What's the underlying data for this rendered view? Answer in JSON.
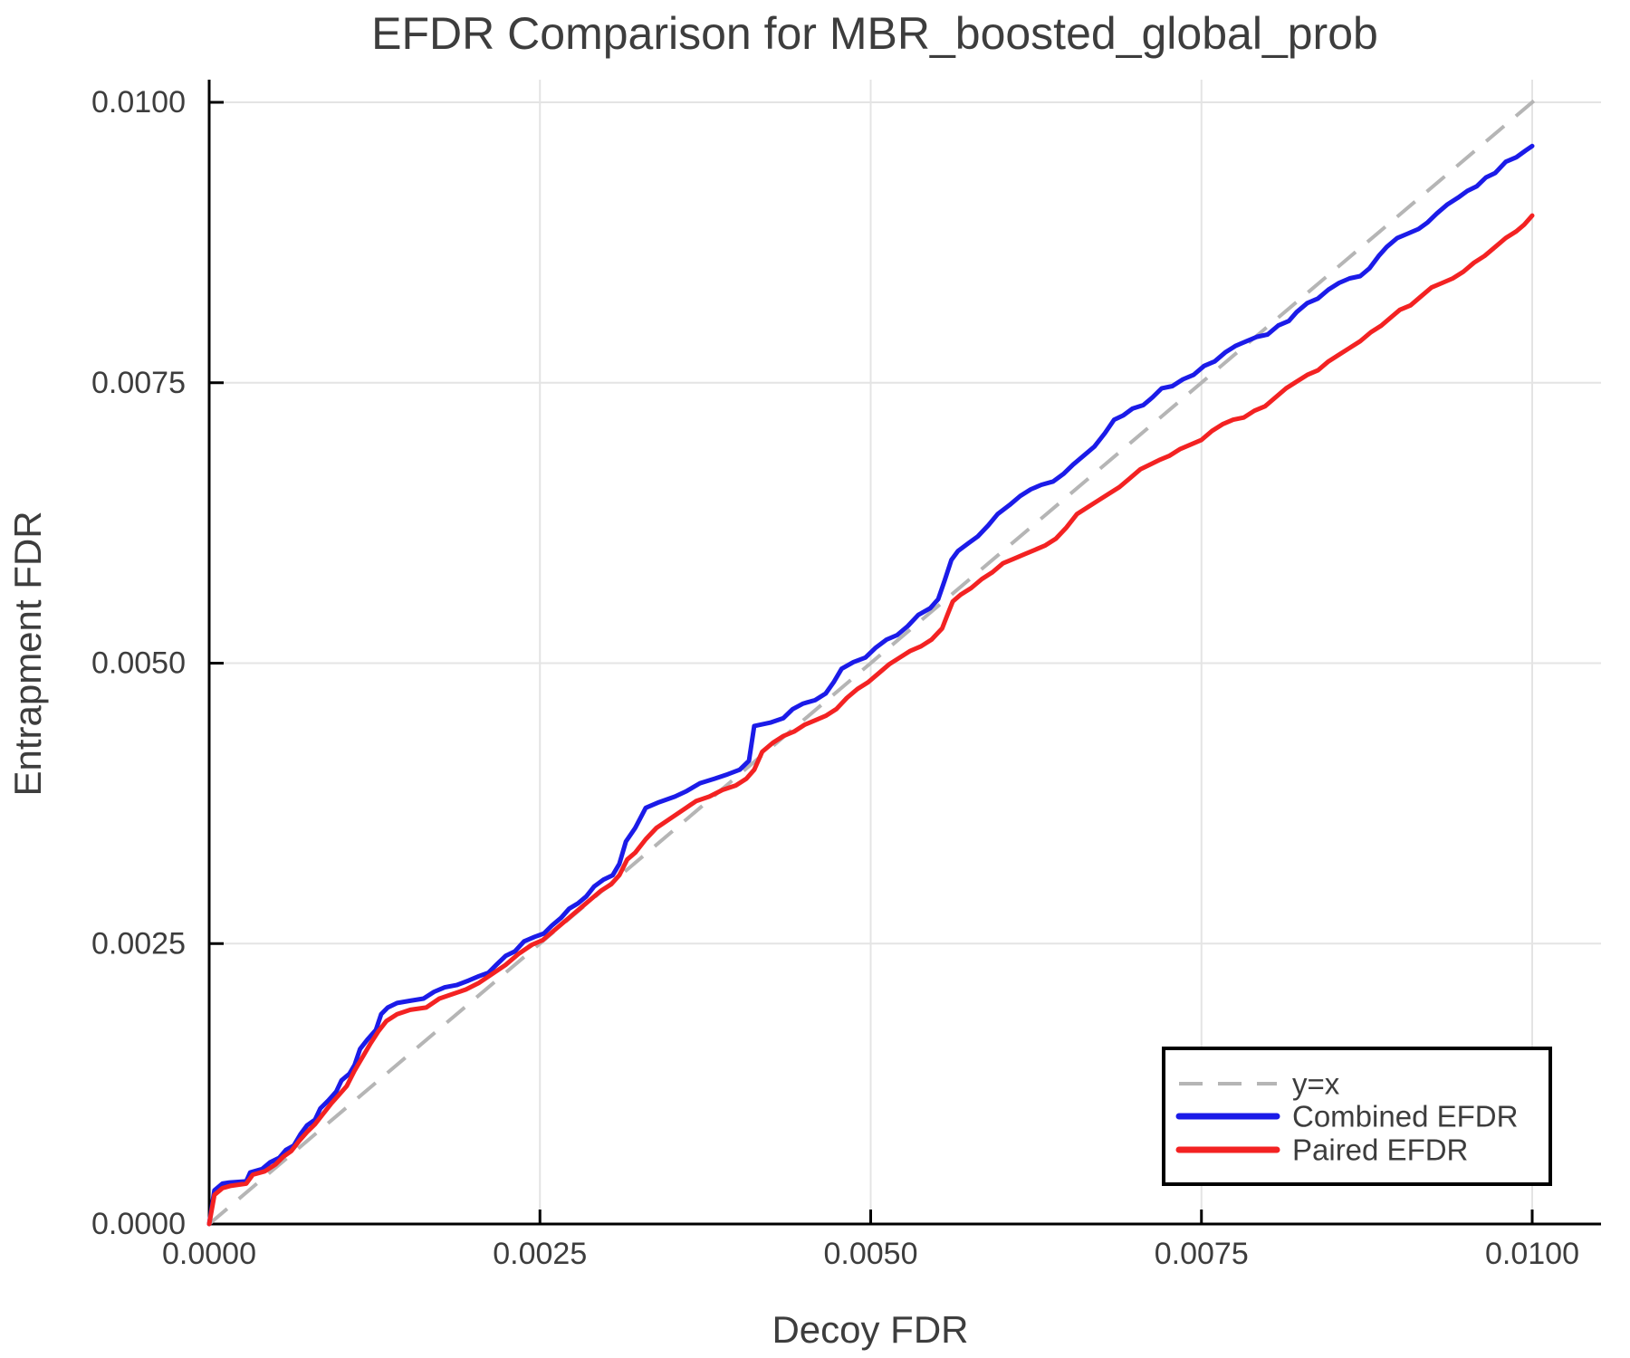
{
  "chart_data": {
    "type": "line",
    "title": "EFDR Comparison for MBR_boosted_global_prob",
    "xlabel": "Decoy FDR",
    "ylabel": "Entrapment FDR",
    "xlim": [
      0.0,
      0.0105
    ],
    "ylim": [
      0.0,
      0.0102
    ],
    "grid": true,
    "x_ticks": {
      "values": [
        0.0,
        0.0025,
        0.005,
        0.0075,
        0.01
      ],
      "labels": [
        "0.0000",
        "0.0025",
        "0.0050",
        "0.0075",
        "0.0100"
      ]
    },
    "y_ticks": {
      "values": [
        0.0,
        0.0025,
        0.005,
        0.0075,
        0.01
      ],
      "labels": [
        "0.0000",
        "0.0025",
        "0.0050",
        "0.0075",
        "0.0100"
      ]
    },
    "colors": {
      "text": "#3d3d3d",
      "axis": "#000000",
      "grid": "#e4e4e4",
      "background": "#ffffff"
    },
    "legend": {
      "position": "bottom-right",
      "entries": [
        "y=x",
        "Combined EFDR",
        "Paired EFDR"
      ]
    },
    "series": [
      {
        "name": "y=x",
        "color": "#b5b5b5",
        "style": "dashed",
        "width": 4,
        "points": [
          [
            0.0,
            0.0
          ],
          [
            0.0101,
            0.0101
          ]
        ]
      },
      {
        "name": "Combined EFDR",
        "color": "#1b1be8",
        "style": "solid",
        "width": 5,
        "points": [
          [
            0.0,
            0.0
          ],
          [
            4e-05,
            0.0003
          ],
          [
            0.0001,
            0.00036
          ],
          [
            0.00015,
            0.00037
          ],
          [
            0.00028,
            0.00038
          ],
          [
            0.00031,
            0.00046
          ],
          [
            0.0004,
            0.00049
          ],
          [
            0.00046,
            0.00055
          ],
          [
            0.00053,
            0.00059
          ],
          [
            0.00058,
            0.00066
          ],
          [
            0.00064,
            0.0007
          ],
          [
            0.00069,
            0.0008
          ],
          [
            0.00074,
            0.00088
          ],
          [
            0.0008,
            0.00093
          ],
          [
            0.00084,
            0.00103
          ],
          [
            0.0009,
            0.0011
          ],
          [
            0.00096,
            0.00118
          ],
          [
            0.001,
            0.00128
          ],
          [
            0.00106,
            0.00134
          ],
          [
            0.0011,
            0.00142
          ],
          [
            0.00114,
            0.00156
          ],
          [
            0.0012,
            0.00165
          ],
          [
            0.00126,
            0.00173
          ],
          [
            0.0013,
            0.00187
          ],
          [
            0.00135,
            0.00193
          ],
          [
            0.00142,
            0.00197
          ],
          [
            0.00152,
            0.00199
          ],
          [
            0.00162,
            0.00201
          ],
          [
            0.0017,
            0.00207
          ],
          [
            0.00178,
            0.00211
          ],
          [
            0.00187,
            0.00213
          ],
          [
            0.00196,
            0.00217
          ],
          [
            0.00204,
            0.00221
          ],
          [
            0.00211,
            0.00224
          ],
          [
            0.00217,
            0.00231
          ],
          [
            0.00224,
            0.00239
          ],
          [
            0.00231,
            0.00243
          ],
          [
            0.00238,
            0.00252
          ],
          [
            0.00246,
            0.00256
          ],
          [
            0.00253,
            0.00259
          ],
          [
            0.00259,
            0.00266
          ],
          [
            0.00266,
            0.00273
          ],
          [
            0.00272,
            0.00281
          ],
          [
            0.00279,
            0.00286
          ],
          [
            0.00285,
            0.00292
          ],
          [
            0.00291,
            0.00301
          ],
          [
            0.00298,
            0.00307
          ],
          [
            0.00305,
            0.00311
          ],
          [
            0.0031,
            0.00321
          ],
          [
            0.00315,
            0.00341
          ],
          [
            0.00322,
            0.00353
          ],
          [
            0.0033,
            0.00371
          ],
          [
            0.0034,
            0.00376
          ],
          [
            0.00352,
            0.00381
          ],
          [
            0.00361,
            0.00386
          ],
          [
            0.00371,
            0.00393
          ],
          [
            0.00382,
            0.00397
          ],
          [
            0.00392,
            0.00401
          ],
          [
            0.00401,
            0.00405
          ],
          [
            0.00408,
            0.00413
          ],
          [
            0.00412,
            0.00444
          ],
          [
            0.00424,
            0.00447
          ],
          [
            0.00434,
            0.00451
          ],
          [
            0.00441,
            0.00459
          ],
          [
            0.00449,
            0.00464
          ],
          [
            0.00458,
            0.00467
          ],
          [
            0.00466,
            0.00473
          ],
          [
            0.00472,
            0.00483
          ],
          [
            0.00478,
            0.00495
          ],
          [
            0.00487,
            0.00501
          ],
          [
            0.00496,
            0.00505
          ],
          [
            0.00504,
            0.00514
          ],
          [
            0.00512,
            0.00521
          ],
          [
            0.0052,
            0.00525
          ],
          [
            0.00528,
            0.00533
          ],
          [
            0.00536,
            0.00543
          ],
          [
            0.00545,
            0.00549
          ],
          [
            0.00551,
            0.00557
          ],
          [
            0.00556,
            0.00574
          ],
          [
            0.00561,
            0.00592
          ],
          [
            0.00566,
            0.006
          ],
          [
            0.00574,
            0.00607
          ],
          [
            0.00581,
            0.00613
          ],
          [
            0.00589,
            0.00623
          ],
          [
            0.00596,
            0.00633
          ],
          [
            0.00605,
            0.00641
          ],
          [
            0.00613,
            0.00649
          ],
          [
            0.00621,
            0.00655
          ],
          [
            0.00629,
            0.00659
          ],
          [
            0.00638,
            0.00662
          ],
          [
            0.00646,
            0.00669
          ],
          [
            0.00653,
            0.00677
          ],
          [
            0.00661,
            0.00685
          ],
          [
            0.00669,
            0.00693
          ],
          [
            0.00677,
            0.00705
          ],
          [
            0.00684,
            0.00717
          ],
          [
            0.00691,
            0.00721
          ],
          [
            0.00698,
            0.00727
          ],
          [
            0.00706,
            0.0073
          ],
          [
            0.00713,
            0.00737
          ],
          [
            0.0072,
            0.00745
          ],
          [
            0.00728,
            0.00747
          ],
          [
            0.00736,
            0.00753
          ],
          [
            0.00744,
            0.00757
          ],
          [
            0.00752,
            0.00765
          ],
          [
            0.0076,
            0.00769
          ],
          [
            0.00768,
            0.00777
          ],
          [
            0.00776,
            0.00783
          ],
          [
            0.00784,
            0.00787
          ],
          [
            0.00792,
            0.00791
          ],
          [
            0.008,
            0.00793
          ],
          [
            0.00808,
            0.00801
          ],
          [
            0.00816,
            0.00805
          ],
          [
            0.00822,
            0.00813
          ],
          [
            0.0083,
            0.00821
          ],
          [
            0.00838,
            0.00825
          ],
          [
            0.00846,
            0.00833
          ],
          [
            0.00854,
            0.00839
          ],
          [
            0.00862,
            0.00843
          ],
          [
            0.0087,
            0.00845
          ],
          [
            0.00877,
            0.00852
          ],
          [
            0.00884,
            0.00863
          ],
          [
            0.0089,
            0.00871
          ],
          [
            0.00898,
            0.00879
          ],
          [
            0.00906,
            0.00883
          ],
          [
            0.00914,
            0.00887
          ],
          [
            0.00921,
            0.00893
          ],
          [
            0.00928,
            0.00901
          ],
          [
            0.00936,
            0.00909
          ],
          [
            0.00944,
            0.00915
          ],
          [
            0.00951,
            0.00921
          ],
          [
            0.00958,
            0.00925
          ],
          [
            0.00965,
            0.00933
          ],
          [
            0.00972,
            0.00937
          ],
          [
            0.0098,
            0.00947
          ],
          [
            0.00988,
            0.00951
          ],
          [
            0.00995,
            0.00957
          ],
          [
            0.01,
            0.00961
          ]
        ]
      },
      {
        "name": "Paired EFDR",
        "color": "#f32222",
        "style": "solid",
        "width": 5,
        "points": [
          [
            0.0,
            0.0
          ],
          [
            4e-05,
            0.00026
          ],
          [
            0.0001,
            0.00032
          ],
          [
            0.00016,
            0.00034
          ],
          [
            0.00028,
            0.00036
          ],
          [
            0.00033,
            0.00044
          ],
          [
            0.00042,
            0.00047
          ],
          [
            0.0005,
            0.00053
          ],
          [
            0.00056,
            0.0006
          ],
          [
            0.00062,
            0.00065
          ],
          [
            0.00068,
            0.00074
          ],
          [
            0.00074,
            0.00082
          ],
          [
            0.0008,
            0.00089
          ],
          [
            0.00086,
            0.00098
          ],
          [
            0.00092,
            0.00107
          ],
          [
            0.00098,
            0.00115
          ],
          [
            0.00104,
            0.00123
          ],
          [
            0.0011,
            0.00137
          ],
          [
            0.00116,
            0.00149
          ],
          [
            0.00122,
            0.00161
          ],
          [
            0.00128,
            0.00172
          ],
          [
            0.00134,
            0.00181
          ],
          [
            0.00142,
            0.00187
          ],
          [
            0.00152,
            0.00191
          ],
          [
            0.00164,
            0.00193
          ],
          [
            0.00174,
            0.00201
          ],
          [
            0.00184,
            0.00205
          ],
          [
            0.00194,
            0.00209
          ],
          [
            0.00204,
            0.00215
          ],
          [
            0.00214,
            0.00223
          ],
          [
            0.00224,
            0.00231
          ],
          [
            0.00234,
            0.00241
          ],
          [
            0.00244,
            0.00249
          ],
          [
            0.00252,
            0.00253
          ],
          [
            0.00262,
            0.00263
          ],
          [
            0.00271,
            0.00272
          ],
          [
            0.0028,
            0.00281
          ],
          [
            0.00288,
            0.00289
          ],
          [
            0.00296,
            0.00297
          ],
          [
            0.00304,
            0.00303
          ],
          [
            0.0031,
            0.00311
          ],
          [
            0.00316,
            0.00325
          ],
          [
            0.00322,
            0.00331
          ],
          [
            0.0033,
            0.00343
          ],
          [
            0.00338,
            0.00353
          ],
          [
            0.00348,
            0.00361
          ],
          [
            0.00358,
            0.00369
          ],
          [
            0.00368,
            0.00377
          ],
          [
            0.00378,
            0.00381
          ],
          [
            0.00388,
            0.00387
          ],
          [
            0.00398,
            0.00391
          ],
          [
            0.00406,
            0.00397
          ],
          [
            0.00412,
            0.00405
          ],
          [
            0.00418,
            0.00421
          ],
          [
            0.00426,
            0.00429
          ],
          [
            0.00434,
            0.00435
          ],
          [
            0.00442,
            0.00439
          ],
          [
            0.0045,
            0.00445
          ],
          [
            0.00458,
            0.00449
          ],
          [
            0.00466,
            0.00453
          ],
          [
            0.00474,
            0.00459
          ],
          [
            0.00482,
            0.00469
          ],
          [
            0.0049,
            0.00477
          ],
          [
            0.00498,
            0.00483
          ],
          [
            0.00506,
            0.00491
          ],
          [
            0.00514,
            0.00499
          ],
          [
            0.00522,
            0.00505
          ],
          [
            0.0053,
            0.00511
          ],
          [
            0.00538,
            0.00515
          ],
          [
            0.00546,
            0.00521
          ],
          [
            0.00554,
            0.00531
          ],
          [
            0.00558,
            0.00543
          ],
          [
            0.00562,
            0.00555
          ],
          [
            0.00568,
            0.00561
          ],
          [
            0.00576,
            0.00567
          ],
          [
            0.00584,
            0.00575
          ],
          [
            0.00592,
            0.00581
          ],
          [
            0.006,
            0.00589
          ],
          [
            0.00608,
            0.00593
          ],
          [
            0.00616,
            0.00597
          ],
          [
            0.00624,
            0.00601
          ],
          [
            0.00632,
            0.00605
          ],
          [
            0.0064,
            0.00611
          ],
          [
            0.00648,
            0.00621
          ],
          [
            0.00656,
            0.00633
          ],
          [
            0.00664,
            0.00639
          ],
          [
            0.00672,
            0.00645
          ],
          [
            0.0068,
            0.00651
          ],
          [
            0.00688,
            0.00657
          ],
          [
            0.00696,
            0.00665
          ],
          [
            0.00704,
            0.00673
          ],
          [
            0.00711,
            0.00677
          ],
          [
            0.00718,
            0.00681
          ],
          [
            0.00726,
            0.00685
          ],
          [
            0.00734,
            0.00691
          ],
          [
            0.00742,
            0.00695
          ],
          [
            0.0075,
            0.00699
          ],
          [
            0.00758,
            0.00707
          ],
          [
            0.00766,
            0.00713
          ],
          [
            0.00774,
            0.00717
          ],
          [
            0.00782,
            0.00719
          ],
          [
            0.0079,
            0.00725
          ],
          [
            0.00798,
            0.00729
          ],
          [
            0.00806,
            0.00737
          ],
          [
            0.00814,
            0.00745
          ],
          [
            0.00822,
            0.00751
          ],
          [
            0.0083,
            0.00757
          ],
          [
            0.00838,
            0.00761
          ],
          [
            0.00846,
            0.00769
          ],
          [
            0.00854,
            0.00775
          ],
          [
            0.00862,
            0.00781
          ],
          [
            0.0087,
            0.00787
          ],
          [
            0.00878,
            0.00795
          ],
          [
            0.00886,
            0.00801
          ],
          [
            0.00894,
            0.00809
          ],
          [
            0.009,
            0.00815
          ],
          [
            0.00908,
            0.00819
          ],
          [
            0.00916,
            0.00827
          ],
          [
            0.00924,
            0.00835
          ],
          [
            0.00932,
            0.00839
          ],
          [
            0.0094,
            0.00843
          ],
          [
            0.00948,
            0.00849
          ],
          [
            0.00956,
            0.00857
          ],
          [
            0.00964,
            0.00863
          ],
          [
            0.00972,
            0.00871
          ],
          [
            0.0098,
            0.00879
          ],
          [
            0.00988,
            0.00885
          ],
          [
            0.00994,
            0.00891
          ],
          [
            0.01,
            0.00899
          ]
        ]
      }
    ]
  }
}
